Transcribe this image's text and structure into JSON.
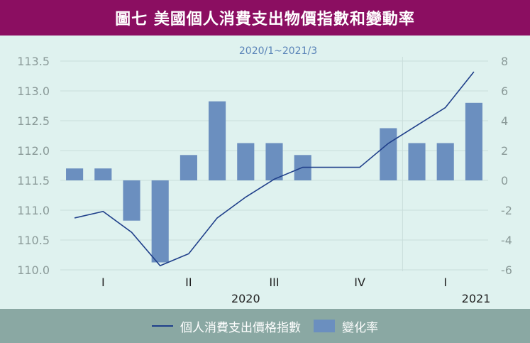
{
  "header": {
    "title": "圖七  美國個人消費支出物價指數和變動率"
  },
  "chart_data": {
    "type": "bar",
    "subtitle": "2020/1~2021/3",
    "left_axis": {
      "ylim": [
        110.0,
        113.5
      ],
      "ticks": [
        "113.5",
        "113.0",
        "112.5",
        "112.0",
        "111.5",
        "111.0",
        "110.5",
        "110.0"
      ]
    },
    "right_axis": {
      "ylim": [
        -6,
        8
      ],
      "ticks": [
        "8",
        "6",
        "4",
        "2",
        "0",
        "-2",
        "-4",
        "-6"
      ]
    },
    "months": [
      "2020/1",
      "2020/2",
      "2020/3",
      "2020/4",
      "2020/5",
      "2020/6",
      "2020/7",
      "2020/8",
      "2020/9",
      "2020/10",
      "2020/11",
      "2020/12",
      "2021/1",
      "2021/2",
      "2021/3"
    ],
    "quarter_labels": [
      "I",
      "II",
      "III",
      "IV",
      "I"
    ],
    "year_labels": [
      "2020",
      "2021"
    ],
    "series": [
      {
        "name": "個人消費支出價格指數",
        "type": "line",
        "values": [
          110.87,
          110.98,
          110.63,
          110.07,
          110.27,
          110.87,
          111.22,
          111.52,
          111.72,
          111.72,
          111.72,
          112.12,
          112.42,
          112.72,
          113.32
        ]
      },
      {
        "name": "變化率",
        "type": "bar",
        "values": [
          0.8,
          0.8,
          -2.7,
          -5.5,
          1.7,
          5.3,
          2.5,
          2.5,
          1.7,
          0,
          0,
          3.5,
          2.5,
          2.5,
          5.2
        ]
      }
    ],
    "colors": {
      "bar": "#6b8fbf",
      "line": "#1f3f8a",
      "grid": "#c9dedb",
      "axis_text": "#8a9a98"
    }
  },
  "legend": {
    "line_label": "個人消費支出價格指數",
    "bar_label": "變化率"
  }
}
